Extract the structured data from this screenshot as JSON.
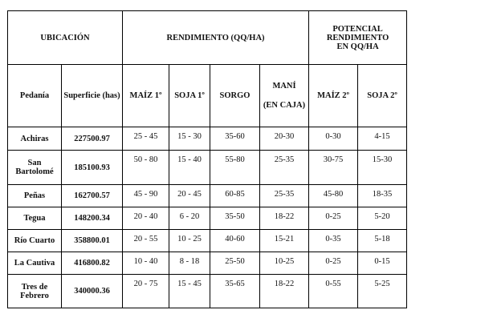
{
  "table": {
    "group_headers": {
      "ubicacion": "UBICACIÓN",
      "rendimiento": "RENDIMIENTO (QQ/HA)",
      "potencial": "POTENCIAL RENDIMIENTO EN QQ/HA"
    },
    "columns": {
      "pedania": "Pedanía",
      "superficie": "Superficie (has)",
      "maiz1": "MAÍZ 1º",
      "soja1": "SOJA 1º",
      "sorgo": "SORGO",
      "mani_line1": "MANÍ",
      "mani_line2": "(EN CAJA)",
      "maiz2": "MAÍZ 2º",
      "soja2": "SOJA 2º"
    },
    "rows": [
      {
        "pedania": "Achiras",
        "superficie": "227500.97",
        "maiz1": "25 - 45",
        "soja1": "15 - 30",
        "sorgo": "35-60",
        "mani": "20-30",
        "maiz2": "0-30",
        "soja2": "4-15"
      },
      {
        "pedania": "San Bartolomé",
        "superficie": "185100.93",
        "maiz1": "50 - 80",
        "soja1": "15 - 40",
        "sorgo": "55-80",
        "mani": "25-35",
        "maiz2": "30-75",
        "soja2": "15-30"
      },
      {
        "pedania": "Peñas",
        "superficie": "162700.57",
        "maiz1": "45 - 90",
        "soja1": "20 - 45",
        "sorgo": "60-85",
        "mani": "25-35",
        "maiz2": "45-80",
        "soja2": "18-35"
      },
      {
        "pedania": "Tegua",
        "superficie": "148200.34",
        "maiz1": "20 - 40",
        "soja1": "6 - 20",
        "sorgo": "35-50",
        "mani": "18-22",
        "maiz2": "0-25",
        "soja2": "5-20"
      },
      {
        "pedania": "Río Cuarto",
        "superficie": "358800.01",
        "maiz1": "20 - 55",
        "soja1": "10 - 25",
        "sorgo": "40-60",
        "mani": "15-21",
        "maiz2": "0-35",
        "soja2": "5-18"
      },
      {
        "pedania": "La Cautiva",
        "superficie": "416800.82",
        "maiz1": "10 - 40",
        "soja1": "8 - 18",
        "sorgo": "25-50",
        "mani": "10-25",
        "maiz2": "0-25",
        "soja2": "0-15"
      },
      {
        "pedania": "Tres de Febrero",
        "superficie": "340000.36",
        "maiz1": "20 - 75",
        "soja1": "15 - 45",
        "sorgo": "35-65",
        "mani": "18-22",
        "maiz2": "0-55",
        "soja2": "5-25"
      }
    ]
  }
}
